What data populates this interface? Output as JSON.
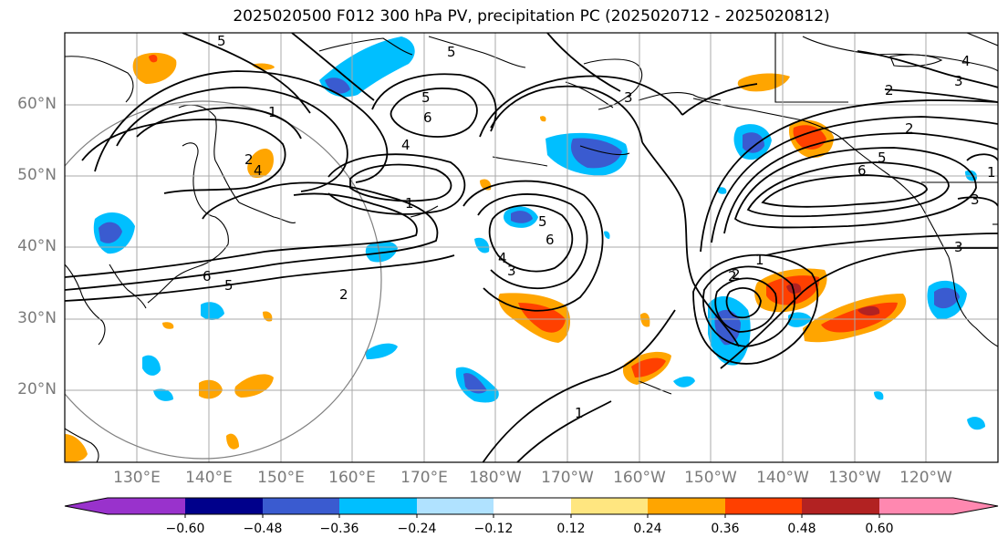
{
  "title": "2025020500 F012 300 hPa PV, precipitation PC (2025020712 - 2025020812)",
  "map": {
    "lat_labels": [
      "60°N",
      "50°N",
      "40°N",
      "30°N",
      "20°N"
    ],
    "lon_labels": [
      "130°E",
      "140°E",
      "150°E",
      "160°E",
      "170°E",
      "180°W",
      "170°W",
      "160°W",
      "150°W",
      "140°W",
      "130°W",
      "120°W"
    ],
    "contour_labels": [
      "5",
      "5",
      "5",
      "6",
      "4",
      "1",
      "2",
      "4",
      "1",
      "6",
      "5",
      "2",
      "5",
      "6",
      "3",
      "4",
      "3",
      "1",
      "2",
      "3",
      "2",
      "2",
      "6",
      "5",
      "3",
      "4",
      "2",
      "3",
      "1",
      "1"
    ]
  },
  "colorbar": {
    "colors": [
      "#9932cc",
      "#00008b",
      "#3a5bd0",
      "#00bfff",
      "#b0e2ff",
      "#ffffff",
      "#ffe680",
      "#ffa500",
      "#ff4000",
      "#b22222",
      "#ff88b0"
    ],
    "tick_labels": [
      "−0.60",
      "−0.48",
      "−0.36",
      "−0.24",
      "−0.12",
      "0.12",
      "0.24",
      "0.36",
      "0.48",
      "0.60"
    ]
  }
}
